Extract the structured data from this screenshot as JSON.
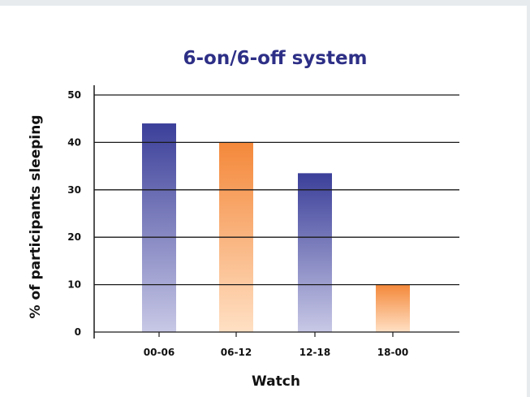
{
  "chart_data": {
    "type": "bar",
    "title": "6-on/6-off system",
    "xlabel": "Watch",
    "ylabel": "% of participants sleeping",
    "categories": [
      "00-06",
      "06-12",
      "12-18",
      "18-00"
    ],
    "values": [
      44,
      40,
      33.5,
      10
    ],
    "ylim": [
      0,
      50
    ],
    "yticks": [
      "0",
      "10",
      "20",
      "30",
      "40",
      "50"
    ],
    "grid": true,
    "bar_colors": [
      "#3b3f99",
      "#f4883a",
      "#3b3f99",
      "#f4883a"
    ],
    "bar_fade_colors": [
      "#c8c8e6",
      "#ffe0c4",
      "#c8c8e6",
      "#ffe0c4"
    ]
  }
}
